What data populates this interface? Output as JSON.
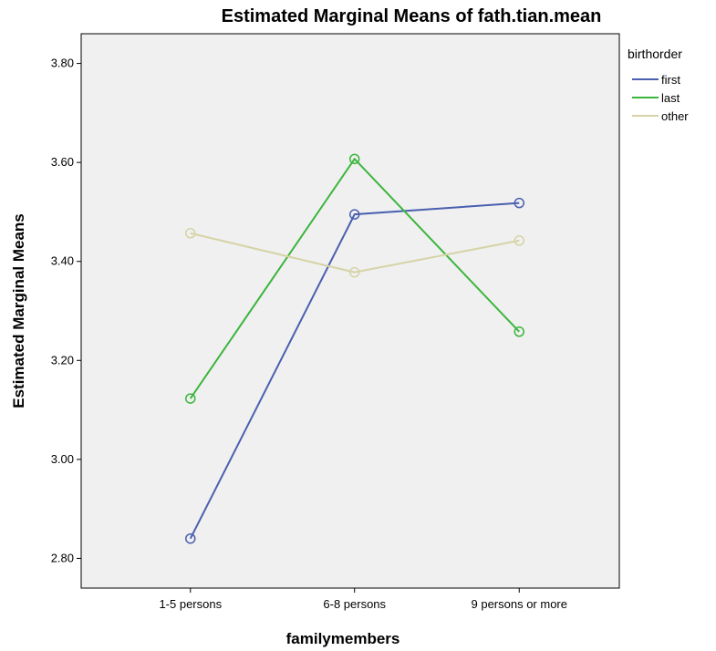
{
  "chart_data": {
    "type": "line",
    "title": "Estimated Marginal Means of fath.tian.mean",
    "xlabel": "familymembers",
    "ylabel": "Estimated Marginal Means",
    "categories": [
      "1-5 persons",
      "6-8 persons",
      "9 persons or more"
    ],
    "ylim": [
      2.74,
      3.86
    ],
    "yticks": [
      2.8,
      3.0,
      3.2,
      3.4,
      3.6,
      3.8
    ],
    "ytick_labels": [
      "2.80",
      "3.00",
      "3.20",
      "3.40",
      "3.60",
      "3.80"
    ],
    "grid": false,
    "legend": {
      "title": "birthorder",
      "position": "right-top"
    },
    "series": [
      {
        "name": "first",
        "color": "#4a5fb0",
        "values": [
          2.84,
          3.495,
          3.518
        ]
      },
      {
        "name": "last",
        "color": "#3cb53c",
        "values": [
          3.123,
          3.607,
          3.258
        ]
      },
      {
        "name": "other",
        "color": "#d6d3a6",
        "values": [
          3.457,
          3.378,
          3.442
        ]
      }
    ],
    "plot_background": "#f0f0f0"
  }
}
